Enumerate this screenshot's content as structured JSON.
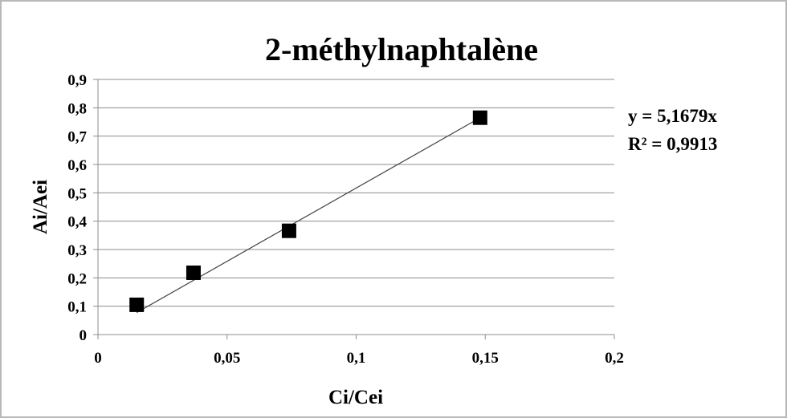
{
  "chart_data": {
    "type": "scatter",
    "title": "2-méthylnaphtalène",
    "xlabel": "Ci/Cei",
    "ylabel": "Ai/Aei",
    "xlim": [
      0,
      0.2
    ],
    "ylim": [
      0,
      0.9
    ],
    "x_ticks": [
      "0",
      "0,05",
      "0,1",
      "0,15",
      "0,2"
    ],
    "y_ticks": [
      "0",
      "0,1",
      "0,2",
      "0,3",
      "0,4",
      "0,5",
      "0,6",
      "0,7",
      "0,8",
      "0,9"
    ],
    "grid": "horizontal",
    "series": [
      {
        "x": [
          0.015,
          0.037,
          0.074,
          0.148
        ],
        "y": [
          0.105,
          0.218,
          0.366,
          0.765
        ]
      }
    ],
    "trendline": {
      "slope": 5.1679,
      "equation": "y = 5,1679x",
      "r_squared": "R² = 0,9913"
    },
    "colors": {
      "marker": "#000000",
      "trendline": "#404040",
      "grid": "#8c8c8c",
      "axis": "#8c8c8c"
    }
  }
}
